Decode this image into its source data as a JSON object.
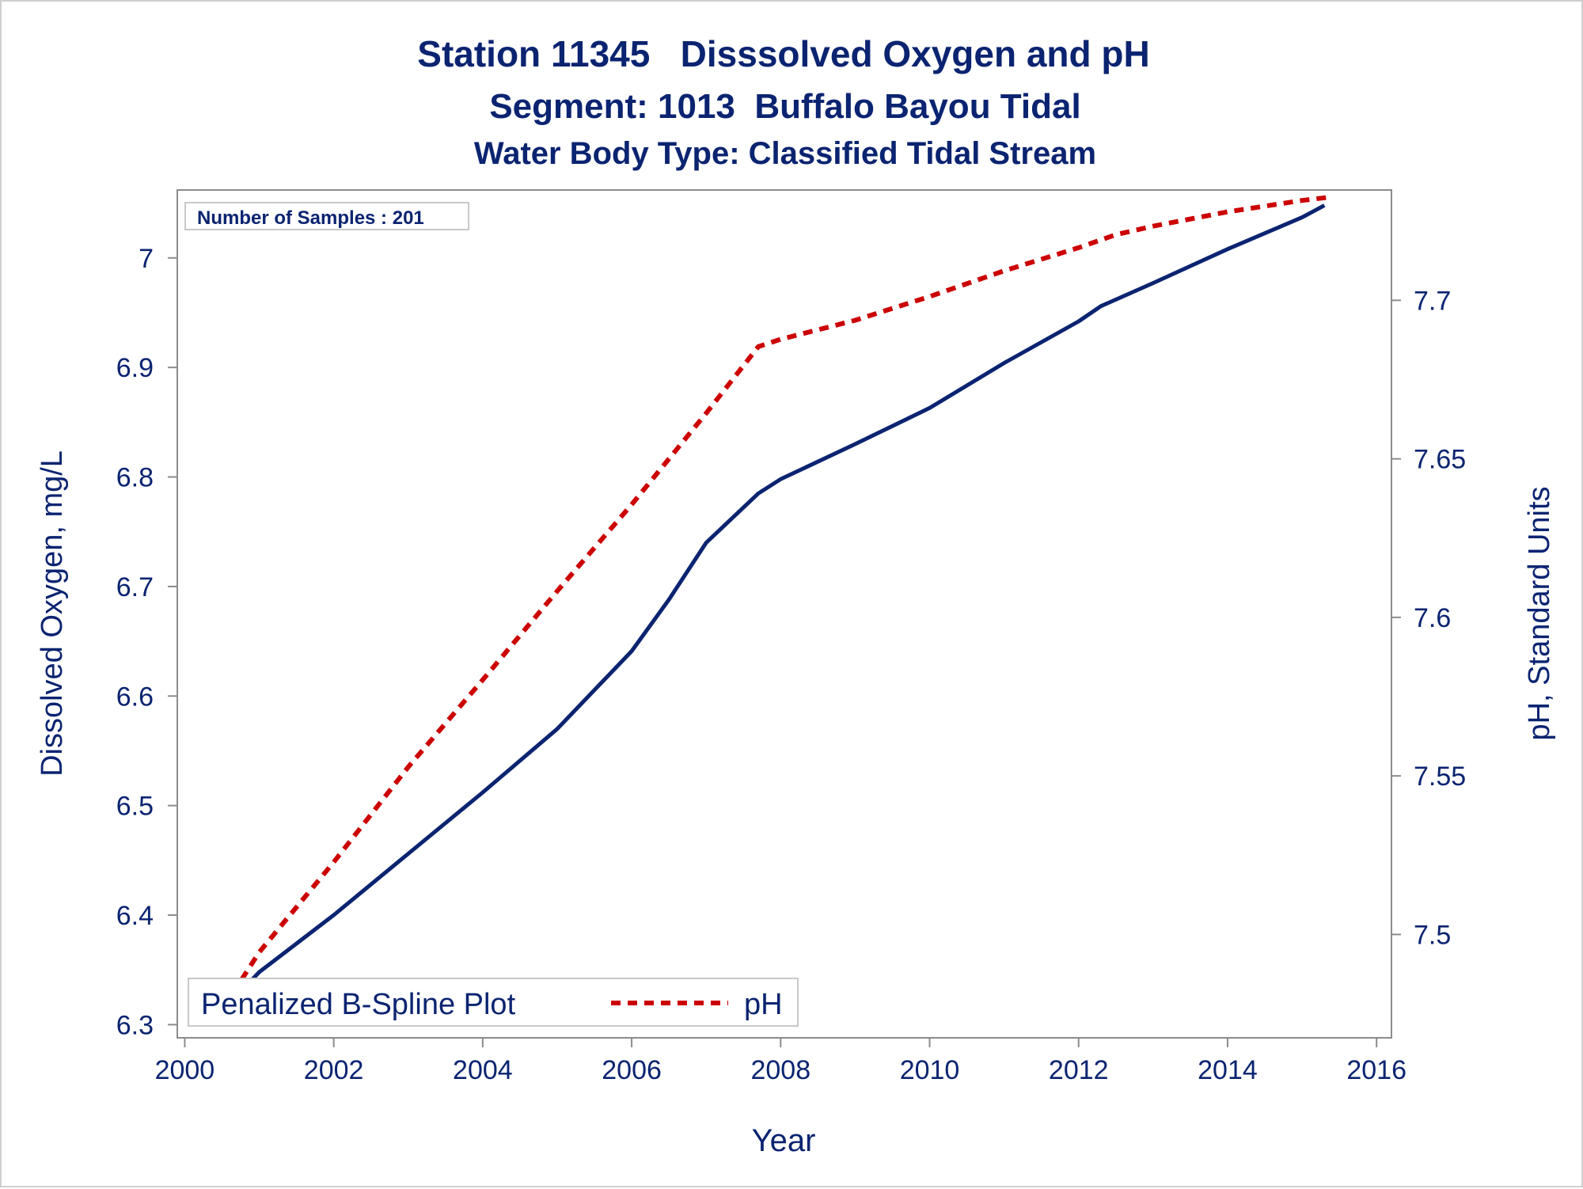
{
  "chart_data": {
    "type": "line",
    "title": "Station 11345   Disssolved Oxygen and pH",
    "subtitle": "Segment: 1013  Buffalo Bayou Tidal",
    "subtitle2": "Water Body Type: Classified Tidal Stream",
    "xlabel": "Year",
    "ylabel": "Dissolved Oxygen, mg/L",
    "y2label": "pH, Standard Units",
    "xlim": [
      1999.9,
      2016.2
    ],
    "ylim": [
      6.288,
      7.062
    ],
    "y2lim": [
      7.4674,
      7.7348
    ],
    "x_ticks": [
      2000,
      2002,
      2004,
      2006,
      2008,
      2010,
      2012,
      2014,
      2016
    ],
    "y_ticks": [
      6.3,
      6.4,
      6.5,
      6.6,
      6.7,
      6.8,
      6.9,
      7
    ],
    "y_tick_labels": [
      "6.3",
      "6.4",
      "6.5",
      "6.6",
      "6.7",
      "6.8",
      "6.9",
      "7"
    ],
    "y2_ticks": [
      7.5,
      7.55,
      7.6,
      7.65,
      7.7
    ],
    "y2_tick_labels": [
      "7.5",
      "7.55",
      "7.6",
      "7.65",
      "7.7"
    ],
    "inset_label": "Number of Samples : 201",
    "legend": {
      "placement": "bottom-left",
      "entries": [
        "Penalized B-Spline Plot",
        "pH"
      ]
    },
    "grid": false,
    "series": [
      {
        "axis": "left",
        "color": "#0b2471",
        "dash": "solid",
        "points": [
          [
            2000.4,
            6.305
          ],
          [
            2001,
            6.348
          ],
          [
            2002,
            6.4
          ],
          [
            2003,
            6.456
          ],
          [
            2004,
            6.512
          ],
          [
            2005,
            6.57
          ],
          [
            2006,
            6.641
          ],
          [
            2006.5,
            6.688
          ],
          [
            2007,
            6.74
          ],
          [
            2007.7,
            6.785
          ],
          [
            2008,
            6.798
          ],
          [
            2009,
            6.83
          ],
          [
            2010,
            6.863
          ],
          [
            2011,
            6.904
          ],
          [
            2012,
            6.942
          ],
          [
            2012.3,
            6.956
          ],
          [
            2013,
            6.977
          ],
          [
            2014,
            7.008
          ],
          [
            2015,
            7.037
          ],
          [
            2015.3,
            7.048
          ]
        ]
      },
      {
        "axis": "right",
        "name": "pH",
        "color": "#cc0000",
        "dash": "dashed",
        "points": [
          [
            2000.4,
            7.4725
          ],
          [
            2001,
            7.4944
          ],
          [
            2002,
            7.5228
          ],
          [
            2003,
            7.5528
          ],
          [
            2004,
            7.5803
          ],
          [
            2005,
            7.6083
          ],
          [
            2006,
            7.6356
          ],
          [
            2007,
            7.6644
          ],
          [
            2007.7,
            7.6854
          ],
          [
            2008,
            7.6877
          ],
          [
            2009,
            7.6937
          ],
          [
            2010,
            7.7012
          ],
          [
            2011,
            7.7093
          ],
          [
            2012,
            7.7166
          ],
          [
            2012.5,
            7.7207
          ],
          [
            2013,
            7.7234
          ],
          [
            2014,
            7.7279
          ],
          [
            2015,
            7.7315
          ],
          [
            2015.4,
            7.7326
          ]
        ]
      }
    ]
  }
}
